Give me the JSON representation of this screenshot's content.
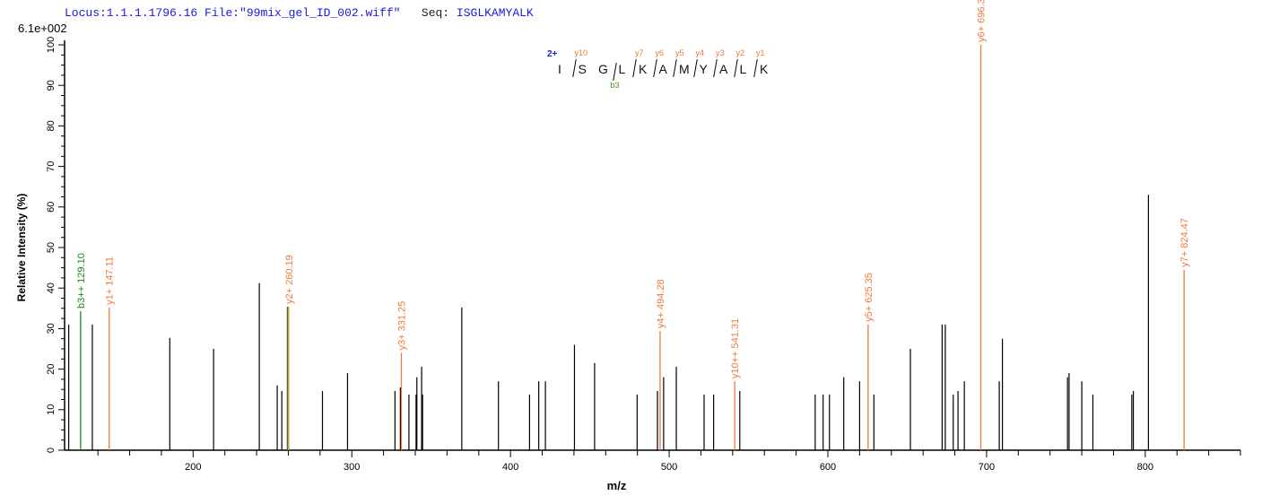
{
  "header": {
    "locus": "Locus:1.1.1.1796.16",
    "file": "File:\"99mix_gel_ID_002.wiff\"",
    "seq_label": "Seq:",
    "seq": "ISGLKAMYALK"
  },
  "peptide": {
    "charge": "2+",
    "residues": [
      "I",
      "S",
      "G",
      "L",
      "K",
      "A",
      "M",
      "Y",
      "A",
      "L",
      "K"
    ],
    "y_ions": [
      {
        "label": "y10",
        "after": 1
      },
      {
        "label": "y7",
        "after": 4
      },
      {
        "label": "y6",
        "after": 5
      },
      {
        "label": "y5",
        "after": 6
      },
      {
        "label": "y4",
        "after": 7
      },
      {
        "label": "y3",
        "after": 8
      },
      {
        "label": "y2",
        "after": 9
      },
      {
        "label": "y1",
        "after": 10
      }
    ],
    "b_ions": [
      {
        "label": "b3",
        "after": 3
      }
    ]
  },
  "chart_data": {
    "type": "bar",
    "scale_label": "6.1e+002",
    "xlabel": "m/z",
    "ylabel": "Relative   Intensity (%)",
    "xlim": [
      119,
      860
    ],
    "ylim": [
      0,
      100
    ],
    "x_ticks": [
      200,
      300,
      400,
      500,
      600,
      700,
      800
    ],
    "y_ticks": [
      0,
      10,
      20,
      30,
      40,
      50,
      60,
      70,
      80,
      90,
      100
    ],
    "colors": {
      "unannotated": "#000000",
      "y": "#f07a3a",
      "b": "#1a8a1a"
    },
    "peaks": [
      {
        "mz": 121.6,
        "i": 31
      },
      {
        "mz": 129.1,
        "i": 34.3,
        "type": "b",
        "label": "b3++ 129.10"
      },
      {
        "mz": 136.5,
        "i": 31
      },
      {
        "mz": 147.11,
        "i": 35.2,
        "type": "y",
        "label": "y1+ 147.11"
      },
      {
        "mz": 185.3,
        "i": 27.7
      },
      {
        "mz": 212.9,
        "i": 25
      },
      {
        "mz": 241.7,
        "i": 41.2
      },
      {
        "mz": 253,
        "i": 16
      },
      {
        "mz": 255.9,
        "i": 14.6
      },
      {
        "mz": 259.4,
        "i": 35.4,
        "type": "b"
      },
      {
        "mz": 260.19,
        "i": 35.4,
        "type": "y",
        "label": "y2+ 260.19"
      },
      {
        "mz": 281.5,
        "i": 14.6
      },
      {
        "mz": 297.3,
        "i": 19
      },
      {
        "mz": 327.2,
        "i": 14.6
      },
      {
        "mz": 330.6,
        "i": 15.5
      },
      {
        "mz": 331.25,
        "i": 24,
        "type": "y",
        "label": "y3+ 331.25"
      },
      {
        "mz": 336,
        "i": 13.7
      },
      {
        "mz": 340.5,
        "i": 13.7
      },
      {
        "mz": 341,
        "i": 18
      },
      {
        "mz": 344,
        "i": 20.6
      },
      {
        "mz": 344.6,
        "i": 13.7
      },
      {
        "mz": 369.3,
        "i": 35.2
      },
      {
        "mz": 392.4,
        "i": 17
      },
      {
        "mz": 412,
        "i": 13.7
      },
      {
        "mz": 417.8,
        "i": 17
      },
      {
        "mz": 422,
        "i": 17
      },
      {
        "mz": 440.3,
        "i": 26
      },
      {
        "mz": 453,
        "i": 21.5
      },
      {
        "mz": 479.8,
        "i": 13.7
      },
      {
        "mz": 492.6,
        "i": 14.6
      },
      {
        "mz": 494.28,
        "i": 29.4,
        "type": "y",
        "label": "y4+ 494.28"
      },
      {
        "mz": 496.5,
        "i": 18
      },
      {
        "mz": 504.5,
        "i": 20.6
      },
      {
        "mz": 522,
        "i": 13.7
      },
      {
        "mz": 528,
        "i": 13.7
      },
      {
        "mz": 541.31,
        "i": 17,
        "type": "y",
        "label": "y10++ 541.31"
      },
      {
        "mz": 544.5,
        "i": 14.6
      },
      {
        "mz": 592,
        "i": 13.7
      },
      {
        "mz": 597,
        "i": 13.7
      },
      {
        "mz": 601,
        "i": 13.7
      },
      {
        "mz": 610,
        "i": 18
      },
      {
        "mz": 620,
        "i": 17
      },
      {
        "mz": 625.35,
        "i": 31,
        "type": "y",
        "label": "y5+ 625.35"
      },
      {
        "mz": 629,
        "i": 13.7
      },
      {
        "mz": 652,
        "i": 25
      },
      {
        "mz": 672,
        "i": 31
      },
      {
        "mz": 674,
        "i": 31
      },
      {
        "mz": 679,
        "i": 13.7
      },
      {
        "mz": 682,
        "i": 14.6
      },
      {
        "mz": 686,
        "i": 17
      },
      {
        "mz": 696.38,
        "i": 100,
        "type": "y",
        "label": "y6+ 696.38"
      },
      {
        "mz": 708,
        "i": 17
      },
      {
        "mz": 710,
        "i": 27.5
      },
      {
        "mz": 751,
        "i": 18
      },
      {
        "mz": 752,
        "i": 19
      },
      {
        "mz": 760,
        "i": 17
      },
      {
        "mz": 767,
        "i": 13.7
      },
      {
        "mz": 791.5,
        "i": 13.7
      },
      {
        "mz": 792.5,
        "i": 14.6
      },
      {
        "mz": 802,
        "i": 63
      },
      {
        "mz": 824.47,
        "i": 44.5,
        "type": "y",
        "label": "y7+ 824.47"
      }
    ]
  }
}
